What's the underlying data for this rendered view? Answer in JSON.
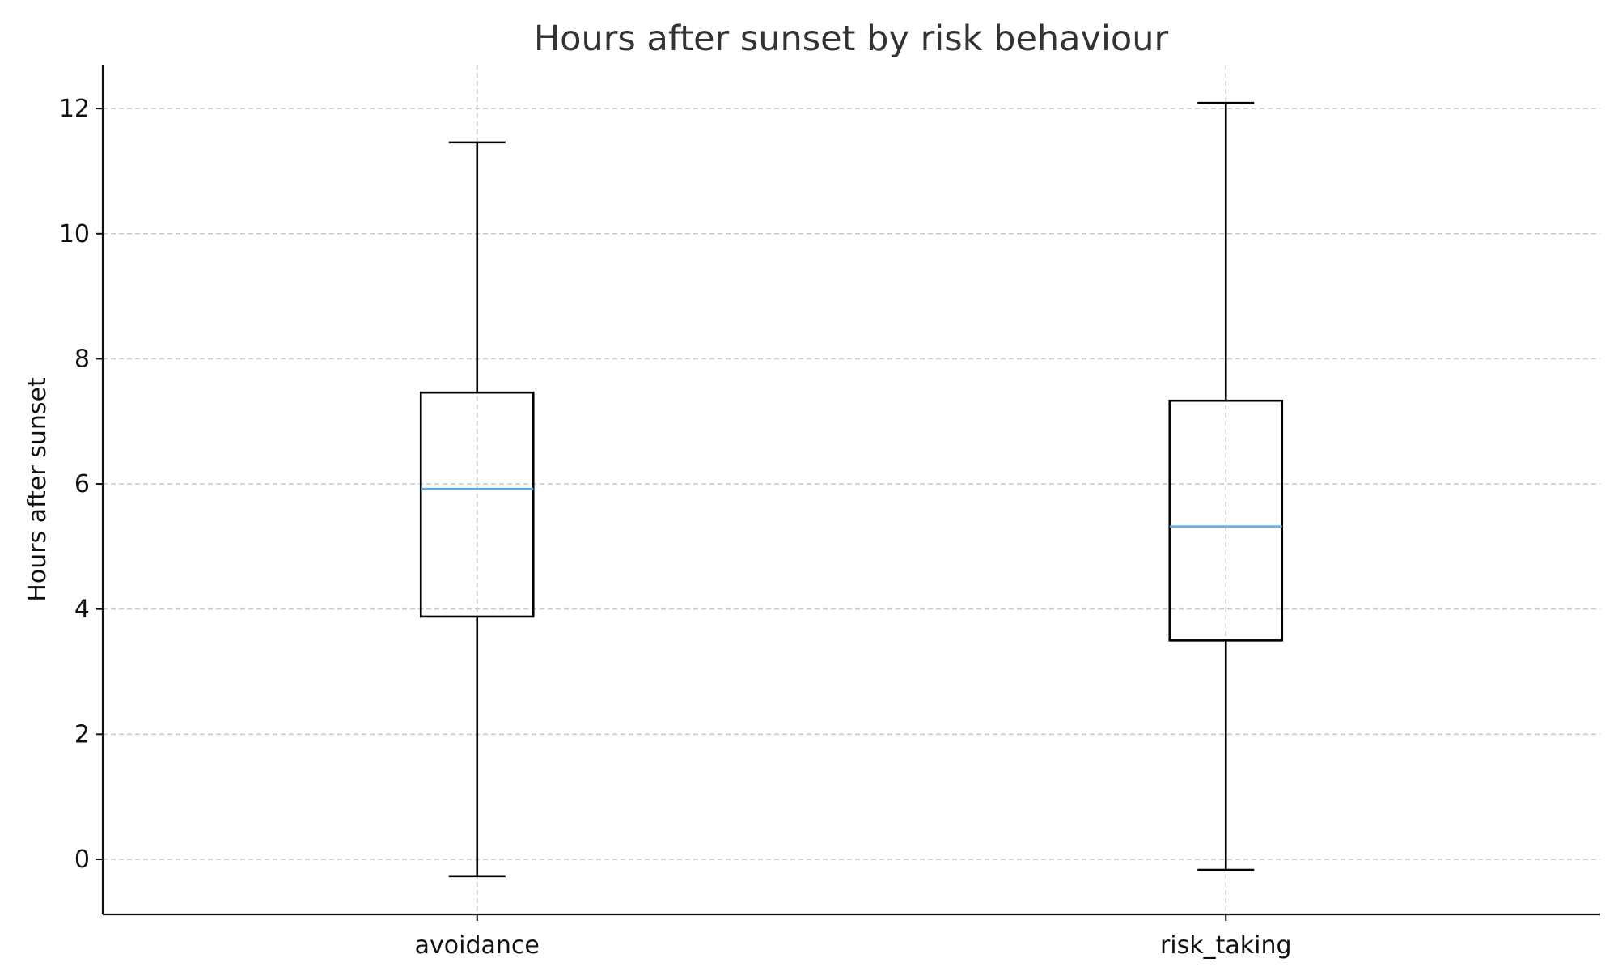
{
  "chart_data": {
    "type": "boxplot",
    "title": "Hours after sunset by risk behaviour",
    "xlabel": "",
    "ylabel": "Hours after sunset",
    "ylim": [
      -0.88,
      12.7
    ],
    "yticks": [
      0,
      2,
      4,
      6,
      8,
      10,
      12
    ],
    "grid": true,
    "categories": [
      "avoidance",
      "risk_taking"
    ],
    "boxes": [
      {
        "name": "avoidance",
        "whisker_low": -0.27,
        "q1": 3.88,
        "median": 5.92,
        "q3": 7.46,
        "whisker_high": 11.46
      },
      {
        "name": "risk_taking",
        "whisker_low": -0.17,
        "q1": 3.5,
        "median": 5.32,
        "q3": 7.33,
        "whisker_high": 12.09
      }
    ],
    "colors": {
      "median": "#5aaee8",
      "box": "#000000",
      "grid": "#c8c8c8",
      "text": "#111111",
      "title": "#333333"
    }
  }
}
